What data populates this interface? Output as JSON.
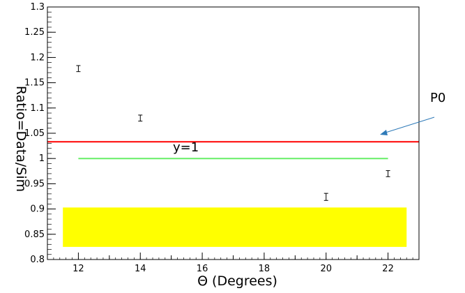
{
  "chart_data": {
    "type": "scatter",
    "title": "",
    "xlabel": "Θ (Degrees)",
    "ylabel": "Ratio=Data/Sim",
    "xlim": [
      11,
      23
    ],
    "ylim": [
      0.8,
      1.3
    ],
    "x_ticks": [
      12,
      14,
      16,
      18,
      20,
      22
    ],
    "x_tick_labels": [
      "12",
      "14",
      "16",
      "18",
      "20",
      "22"
    ],
    "y_ticks": [
      0.8,
      0.85,
      0.9,
      0.95,
      1.0,
      1.05,
      1.1,
      1.15,
      1.2,
      1.25,
      1.3
    ],
    "y_tick_labels": [
      "0.8",
      "0.85",
      "0.9",
      "0.95",
      "1",
      "1.05",
      "1.1",
      "1.15",
      "1.2",
      "1.25",
      "1.3"
    ],
    "grid": false,
    "points": [
      {
        "x": 12,
        "y": 1.178,
        "err": 0.006
      },
      {
        "x": 14,
        "y": 1.08,
        "err": 0.006
      },
      {
        "x": 20,
        "y": 0.924,
        "err": 0.007
      },
      {
        "x": 22,
        "y": 0.97,
        "err": 0.006
      }
    ],
    "fit_line": {
      "y": 1.033,
      "x_range": [
        11,
        23
      ],
      "color": "#ff0000"
    },
    "reference_line": {
      "y": 1.0,
      "x_range": [
        12,
        22
      ],
      "color": "#66ee66",
      "label": "y=1"
    },
    "band": {
      "x_range": [
        11.5,
        22.6
      ],
      "y_range": [
        0.825,
        0.903
      ],
      "color": "#ffff00"
    },
    "annotations": [
      {
        "text": "P0",
        "color": "#000000"
      },
      {
        "text": "y=1",
        "color": "#000000"
      }
    ],
    "arrow_color": "#2e7ab8"
  }
}
